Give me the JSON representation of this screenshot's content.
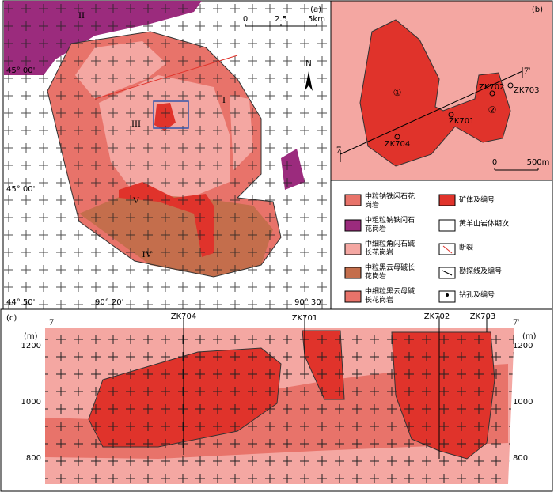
{
  "panel_a": {
    "label": "(a)",
    "units": [
      "II",
      "I",
      "III",
      "V",
      "IV"
    ],
    "lat_labels": [
      "45° 00'",
      "45° 00'",
      "44° 50'"
    ],
    "lon_labels": [
      "90° 20'",
      "90° 30'"
    ],
    "scale": [
      "0",
      "2.5",
      "5km"
    ],
    "north": "N"
  },
  "panel_b": {
    "label": "(b)",
    "orebodies": [
      "①",
      "②"
    ],
    "drills": [
      "ZK702",
      "ZK703",
      "ZK701",
      "ZK704"
    ],
    "line_ends": [
      "7",
      "7'"
    ],
    "scale": [
      "0",
      "500m"
    ]
  },
  "legend": {
    "items": [
      "中粒钠铁闪石花岗岩",
      "中粗粒钠铁闪石花岗岩",
      "中细粒角闪石碱长花岗岩",
      "中粒黑云母碱长花岗岩",
      "中细粒黑云母碱长花岗岩",
      "矿体及编号",
      "黄羊山岩体期次",
      "断裂",
      "勘探线及编号",
      "钻孔及编号"
    ]
  },
  "panel_c": {
    "label": "(c)",
    "line_ends": [
      "7",
      "7'"
    ],
    "drills": [
      "ZK704",
      "ZK701",
      "ZK702",
      "ZK703"
    ],
    "unit": "(m)",
    "elevations": [
      "1200",
      "1000",
      "800"
    ]
  }
}
